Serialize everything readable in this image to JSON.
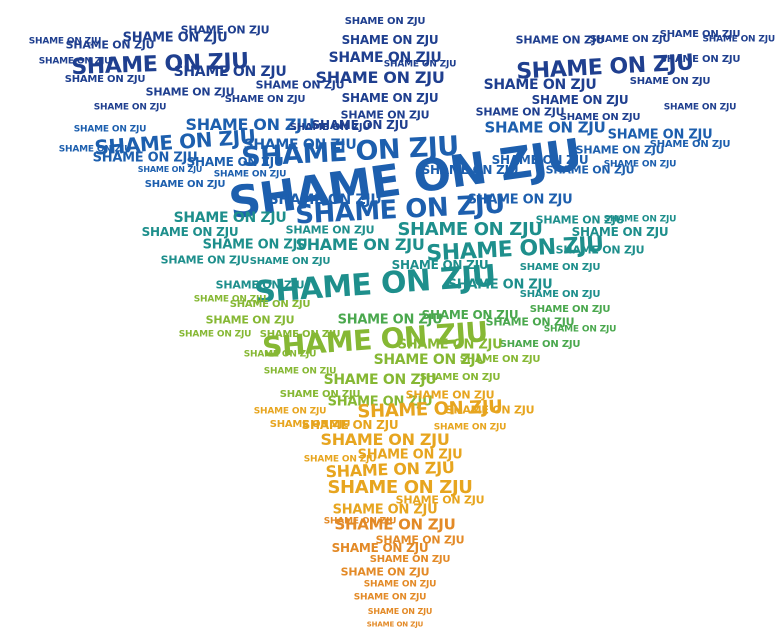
{
  "phrase": "SHAME ON ZJU",
  "palette": {
    "navy": "#1f3f8f",
    "blue": "#1d5fae",
    "teal": "#1e8f8c",
    "green": "#4aa84e",
    "lime": "#86b834",
    "gold": "#e7a51f",
    "orange": "#e38a27"
  }
}
